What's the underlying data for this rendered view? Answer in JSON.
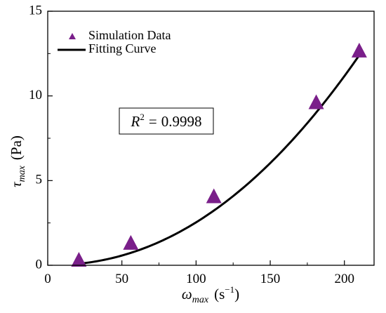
{
  "chart_data": {
    "type": "scatter",
    "xlabel": {
      "symbol": "ω",
      "subscript": "max",
      "unit_base": "s",
      "unit_exponent": "−1"
    },
    "ylabel": {
      "symbol": "τ",
      "subscript": "max",
      "unit": "Pa"
    },
    "xlim": [
      0,
      220
    ],
    "ylim": [
      0,
      15
    ],
    "xticks": [
      0,
      50,
      100,
      150,
      200
    ],
    "yticks": [
      0,
      5,
      10,
      15
    ],
    "xtick_labels": [
      "0",
      "50",
      "100",
      "150",
      "200"
    ],
    "ytick_labels": [
      "0",
      "5",
      "10",
      "15"
    ],
    "grid": false,
    "legend_position": "top-left",
    "series": [
      {
        "name": "Simulation Data",
        "kind": "markers",
        "marker": "triangle",
        "color": "#7a1f8a",
        "x": [
          21,
          56,
          112,
          181,
          210
        ],
        "y": [
          0.25,
          1.25,
          4.0,
          9.55,
          12.6
        ]
      },
      {
        "name": "Fitting Curve",
        "kind": "line",
        "color": "#000000",
        "x_range": [
          21,
          210
        ],
        "fit": {
          "a": 0.000133,
          "b": 2.14
        }
      }
    ],
    "annotation": {
      "label": "R",
      "exponent": "2",
      "equals": "=",
      "value": "0.9998"
    }
  }
}
